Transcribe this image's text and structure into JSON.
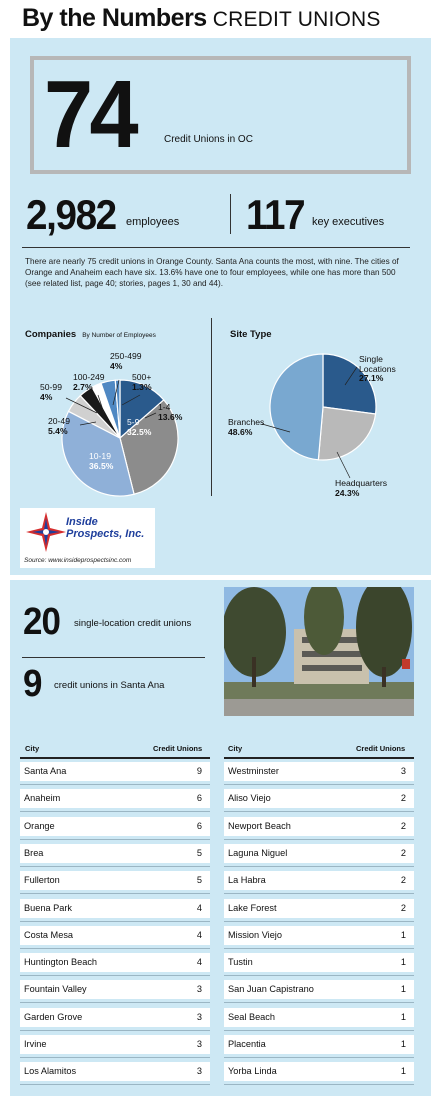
{
  "header": {
    "title": "By the Numbers",
    "subtitle": "CREDIT UNIONS"
  },
  "headline_stat": {
    "value": "74",
    "label": "Credit Unions in OC"
  },
  "stats": [
    {
      "value": "2,982",
      "label": "employees"
    },
    {
      "value": "117",
      "label": "key executives"
    }
  ],
  "description": "There are nearly 75 credit unions in Orange County. Santa Ana counts the most, with nine. The cities of Orange and Anaheim each have six. 13.6% have one to four employees, while one has more than 500 (see related list, page 40; stories, pages 1, 30 and 44).",
  "companies": {
    "title": "Companies",
    "subtitle": "By Number of Employees"
  },
  "site_type": {
    "title": "Site Type"
  },
  "chart_data": [
    {
      "type": "pie",
      "title": "Companies",
      "subtitle": "By Number of Employees",
      "categories": [
        "1-4",
        "5-9",
        "10-19",
        "20-49",
        "50-99",
        "100-249",
        "250-499",
        "500+"
      ],
      "values": [
        13.6,
        32.5,
        36.5,
        5.4,
        4,
        2.7,
        4,
        1.3
      ],
      "value_labels": [
        "13.6%",
        "32.5%",
        "36.5%",
        "5.4%",
        "4%",
        "2.7%",
        "4%",
        "1.3%"
      ],
      "colors": [
        "#2a5a8c",
        "#8c8c8c",
        "#8fb0d8",
        "#d0d0d0",
        "#1a1a1a",
        "#ffffff",
        "#4f88c3",
        "#4f88c3"
      ]
    },
    {
      "type": "pie",
      "title": "Site Type",
      "categories": [
        "Single Locations",
        "Headquarters",
        "Branches"
      ],
      "values": [
        27.1,
        24.3,
        48.6
      ],
      "value_labels": [
        "27.1%",
        "24.3%",
        "48.6%"
      ],
      "colors": [
        "#2a5a8c",
        "#b9b9b9",
        "#79a8d0"
      ]
    }
  ],
  "logo": {
    "line1": "Inside",
    "line2": "Prospects, Inc.",
    "source": "Source: www.insideprospectsinc.com"
  },
  "secondary_stats": [
    {
      "value": "20",
      "label": "single-location credit unions"
    },
    {
      "value": "9",
      "label": "credit unions in Santa Ana"
    }
  ],
  "table": {
    "col_city": "City",
    "col_count": "Credit Unions",
    "left": [
      {
        "city": "Santa Ana",
        "count": "9"
      },
      {
        "city": "Anaheim",
        "count": "6"
      },
      {
        "city": "Orange",
        "count": "6"
      },
      {
        "city": "Brea",
        "count": "5"
      },
      {
        "city": "Fullerton",
        "count": "5"
      },
      {
        "city": "Buena Park",
        "count": "4"
      },
      {
        "city": "Costa Mesa",
        "count": "4"
      },
      {
        "city": "Huntington Beach",
        "count": "4"
      },
      {
        "city": "Fountain Valley",
        "count": "3"
      },
      {
        "city": "Garden Grove",
        "count": "3"
      },
      {
        "city": "Irvine",
        "count": "3"
      },
      {
        "city": "Los Alamitos",
        "count": "3"
      }
    ],
    "right": [
      {
        "city": "Westminster",
        "count": "3"
      },
      {
        "city": "Aliso Viejo",
        "count": "2"
      },
      {
        "city": "Newport Beach",
        "count": "2"
      },
      {
        "city": "Laguna Niguel",
        "count": "2"
      },
      {
        "city": "La Habra",
        "count": "2"
      },
      {
        "city": "Lake Forest",
        "count": "2"
      },
      {
        "city": "Mission Viejo",
        "count": "1"
      },
      {
        "city": "Tustin",
        "count": "1"
      },
      {
        "city": "San Juan Capistrano",
        "count": "1"
      },
      {
        "city": "Seal Beach",
        "count": "1"
      },
      {
        "city": "Placentia",
        "count": "1"
      },
      {
        "city": "Yorba Linda",
        "count": "1"
      }
    ]
  }
}
